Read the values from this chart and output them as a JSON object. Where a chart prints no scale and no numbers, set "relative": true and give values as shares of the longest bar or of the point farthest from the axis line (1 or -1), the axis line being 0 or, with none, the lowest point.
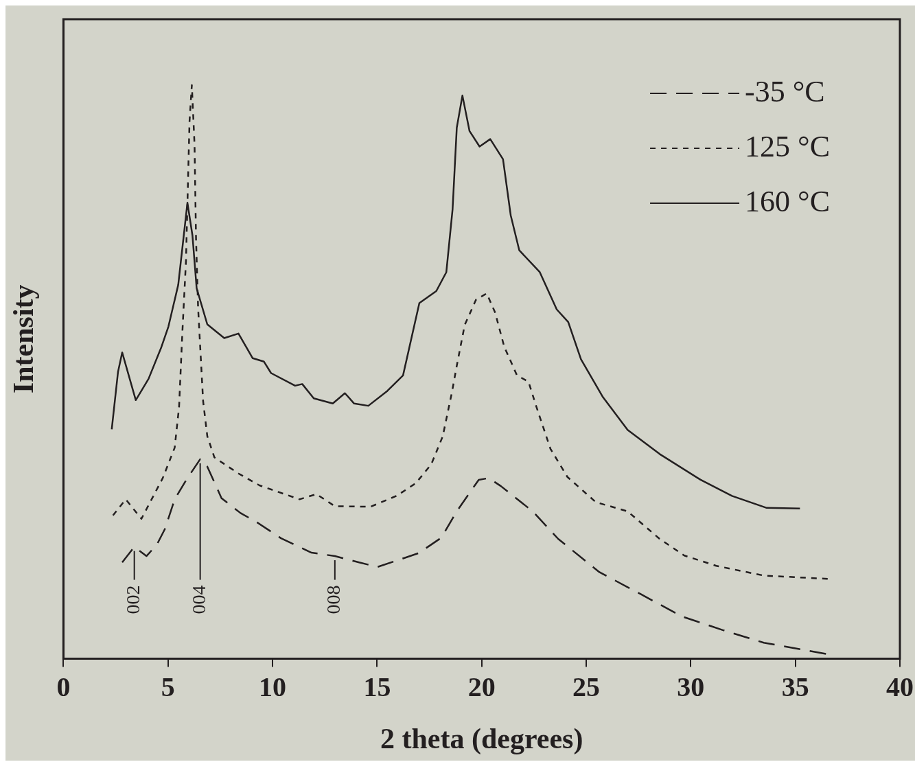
{
  "chart_data": {
    "type": "line",
    "relative": true,
    "xlabel": "2 theta (degrees)",
    "ylabel": "Intensity",
    "xlim": [
      0,
      40
    ],
    "xticks": [
      0,
      5,
      10,
      15,
      20,
      25,
      30,
      35,
      40
    ],
    "grid": false,
    "legend": "top right",
    "marker": "none",
    "series": [
      {
        "name": "-35 °C",
        "color": "#231f20",
        "line_style": "dashed",
        "x": [
          2.81,
          3.39,
          3.97,
          4.47,
          4.85,
          5.32,
          5.86,
          6.54,
          6.88,
          7.56,
          8.47,
          9.25,
          10.41,
          11.86,
          12.98,
          14.14,
          15.02,
          16.98,
          18.07,
          18.81,
          19.86,
          20.34,
          20.92,
          22.44,
          23.66,
          25.63,
          27.59,
          29.56,
          31.53,
          33.49,
          36.68
        ],
        "values": [
          0.168,
          0.195,
          0.179,
          0.199,
          0.226,
          0.278,
          0.311,
          0.348,
          0.335,
          0.28,
          0.254,
          0.238,
          0.21,
          0.185,
          0.179,
          0.168,
          0.16,
          0.184,
          0.211,
          0.257,
          0.312,
          0.315,
          0.301,
          0.257,
          0.209,
          0.151,
          0.113,
          0.074,
          0.05,
          0.028,
          0.007
        ]
      },
      {
        "name": "125 °C",
        "color": "#231f20",
        "line_style": "dotted",
        "x": [
          2.37,
          2.98,
          3.73,
          4.75,
          5.32,
          5.53,
          5.69,
          5.86,
          6.03,
          6.14,
          6.27,
          6.34,
          6.44,
          6.68,
          6.88,
          7.22,
          8.37,
          9.39,
          11.29,
          12.1,
          12.98,
          14.68,
          15.93,
          16.85,
          17.59,
          18.14,
          18.58,
          18.81,
          19.19,
          19.73,
          20.24,
          20.64,
          21.08,
          21.69,
          22.24,
          22.61,
          23.29,
          24.1,
          25.46,
          26.98,
          28.51,
          29.69,
          31.22,
          33.49,
          36.68
        ],
        "values": [
          0.25,
          0.278,
          0.244,
          0.315,
          0.368,
          0.439,
          0.571,
          0.693,
          0.937,
          1,
          0.896,
          0.734,
          0.612,
          0.449,
          0.388,
          0.351,
          0.323,
          0.302,
          0.278,
          0.287,
          0.266,
          0.265,
          0.284,
          0.306,
          0.339,
          0.388,
          0.465,
          0.511,
          0.582,
          0.626,
          0.637,
          0.604,
          0.544,
          0.494,
          0.483,
          0.44,
          0.366,
          0.317,
          0.273,
          0.257,
          0.209,
          0.18,
          0.162,
          0.145,
          0.139
        ]
      },
      {
        "name": "160 °C",
        "color": "#231f20",
        "line_style": "solid",
        "x": [
          2.31,
          2.61,
          2.81,
          3.46,
          4.07,
          4.68,
          5.02,
          5.49,
          5.93,
          6.17,
          6.37,
          6.88,
          7.69,
          8.37,
          9.05,
          9.59,
          9.93,
          11.08,
          11.42,
          11.97,
          12.88,
          13.46,
          13.9,
          14.58,
          15.49,
          16.24,
          17.02,
          17.83,
          18.31,
          18.61,
          18.81,
          19.08,
          19.42,
          19.9,
          20.41,
          21.02,
          21.39,
          21.8,
          22.78,
          23.59,
          24.14,
          24.75,
          25.8,
          26.98,
          28.51,
          30.47,
          31.97,
          33.63,
          35.22
        ],
        "values": [
          0.4,
          0.5,
          0.534,
          0.451,
          0.488,
          0.543,
          0.579,
          0.652,
          0.795,
          0.738,
          0.646,
          0.583,
          0.559,
          0.567,
          0.524,
          0.518,
          0.498,
          0.476,
          0.479,
          0.454,
          0.445,
          0.463,
          0.445,
          0.441,
          0.467,
          0.494,
          0.62,
          0.641,
          0.674,
          0.784,
          0.926,
          0.982,
          0.92,
          0.893,
          0.906,
          0.871,
          0.773,
          0.712,
          0.674,
          0.609,
          0.587,
          0.522,
          0.456,
          0.399,
          0.357,
          0.312,
          0.284,
          0.263,
          0.262
        ]
      }
    ],
    "annotations": [
      {
        "text": "002",
        "x": 3.39,
        "y": 0.195
      },
      {
        "text": "004",
        "x": 6.54,
        "y": 0.348
      },
      {
        "text": "008",
        "x": 12.98,
        "y": 0.179
      }
    ]
  }
}
